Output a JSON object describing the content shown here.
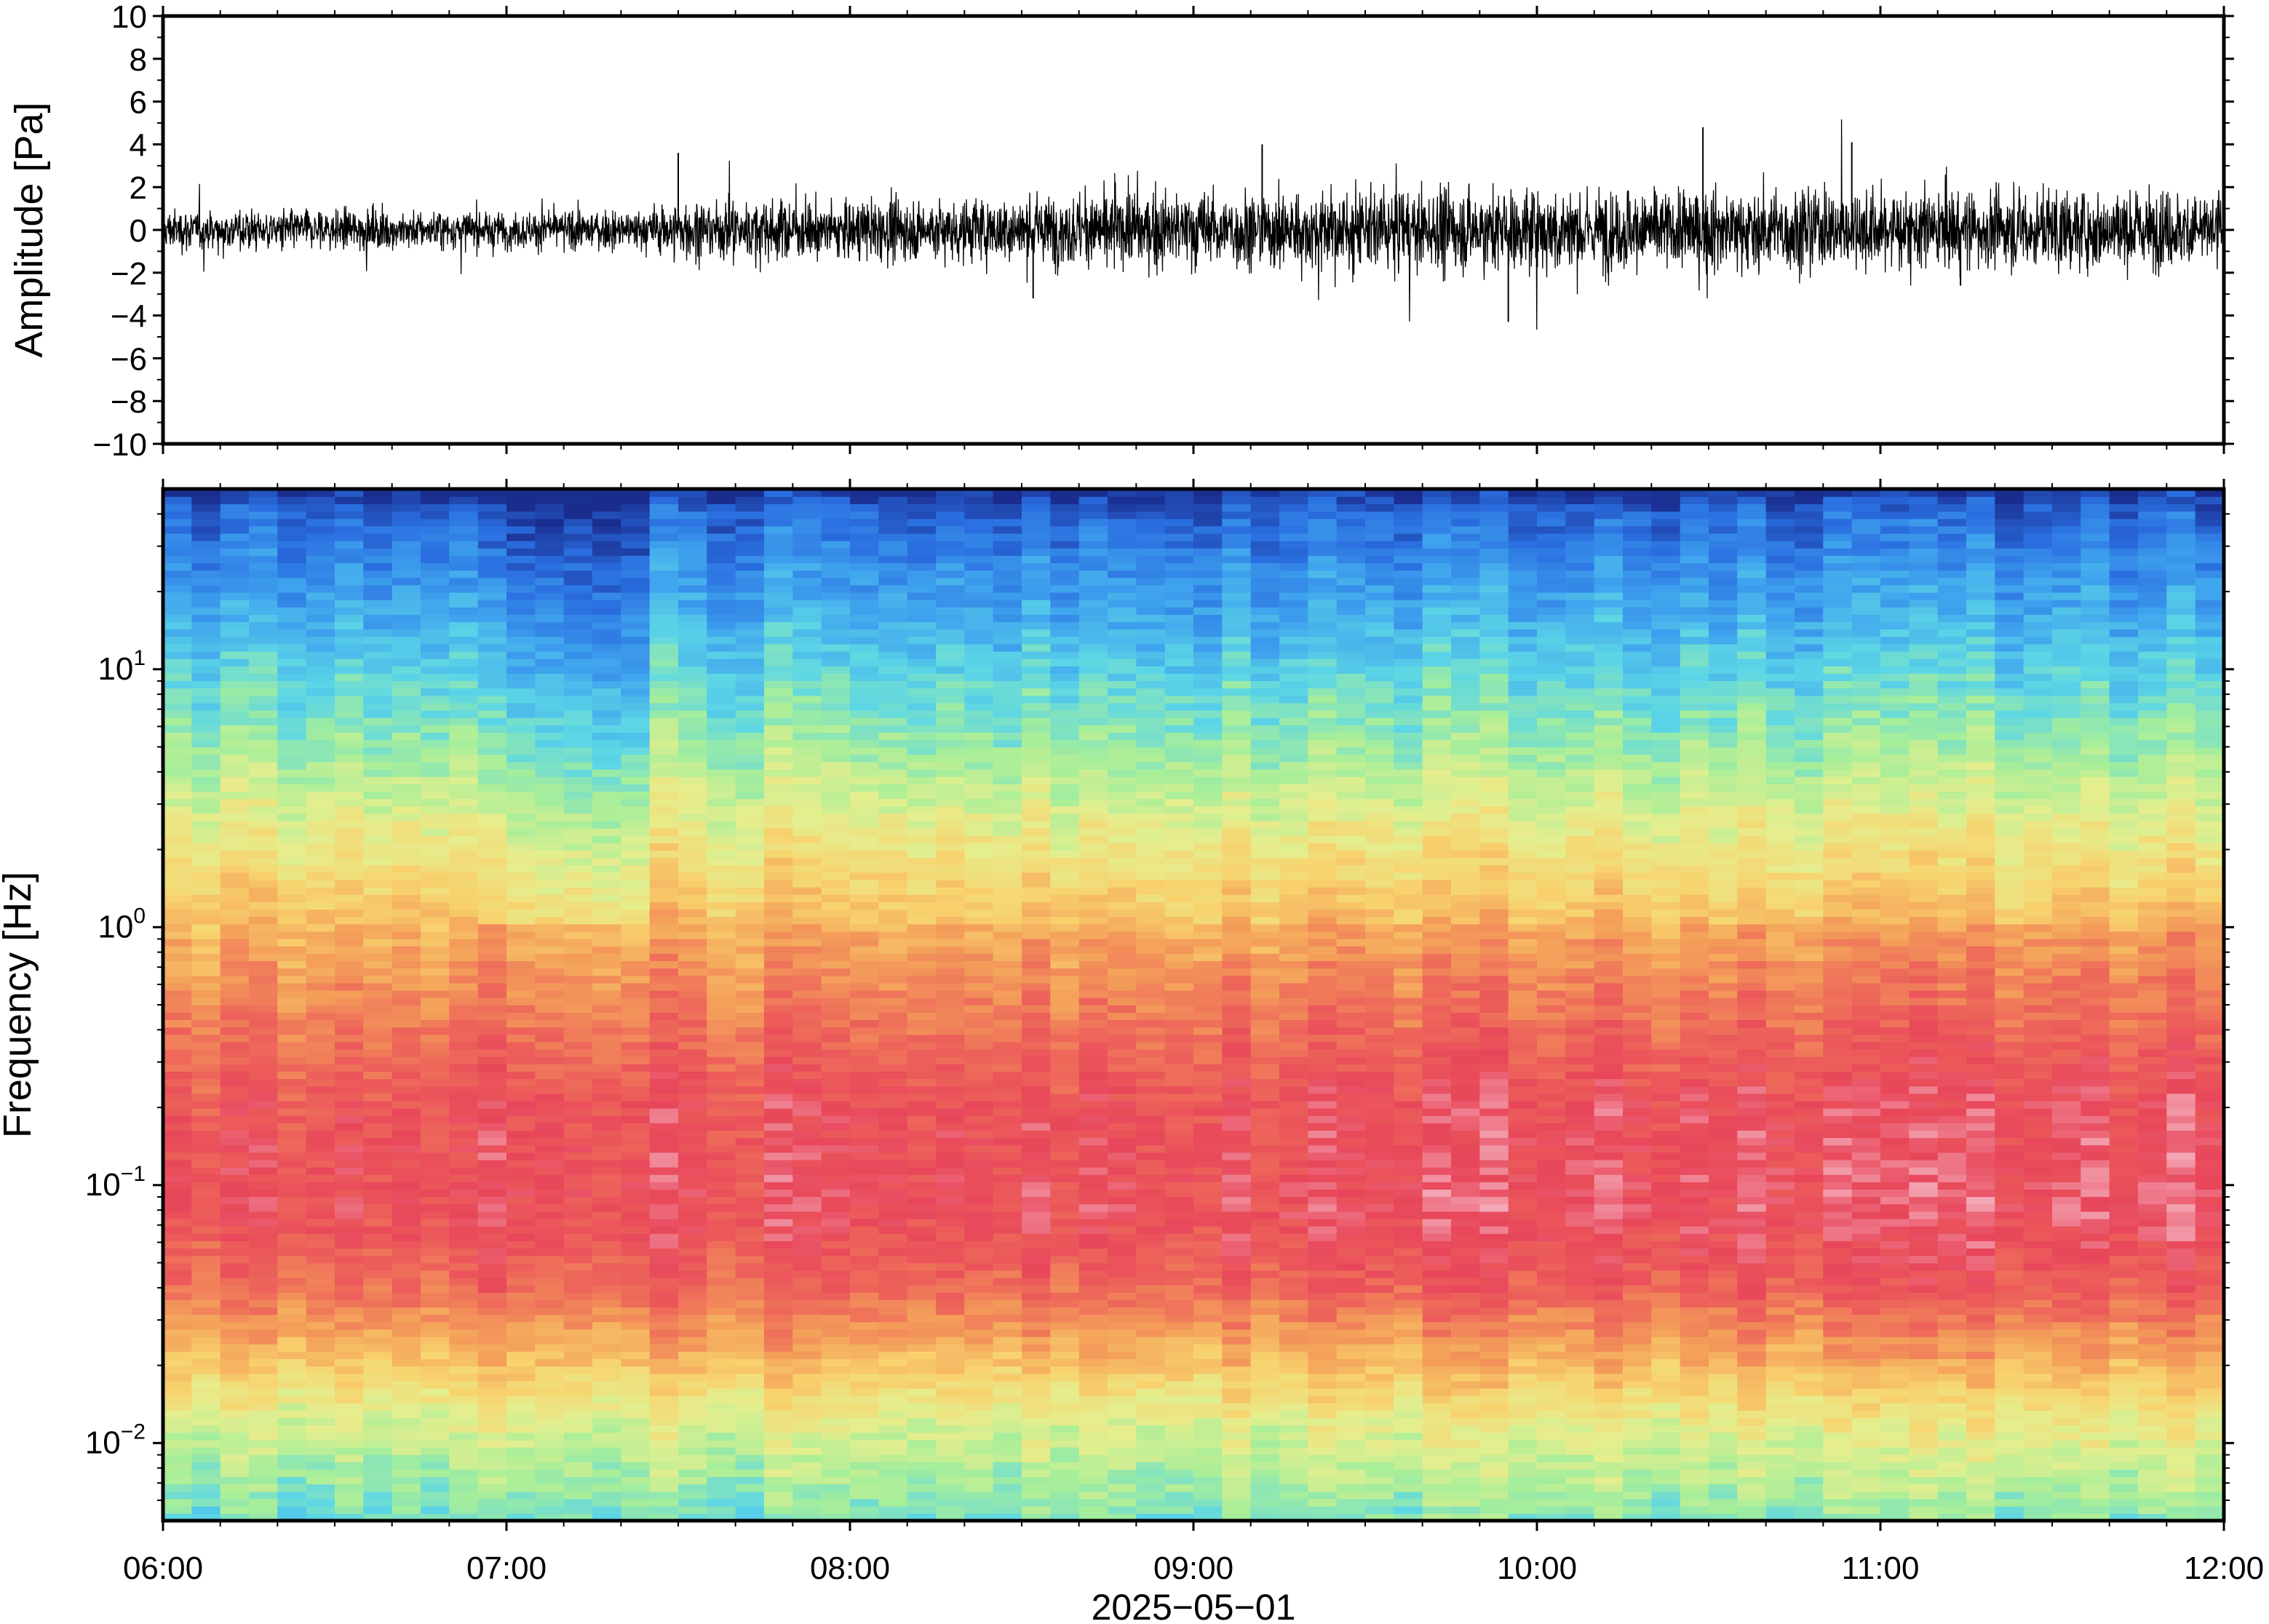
{
  "chart_data": [
    {
      "type": "line",
      "ylabel": "Amplitude [Pa]",
      "ylim": [
        -10,
        10
      ],
      "y_ticks": [
        {
          "value": 10,
          "label": "10"
        },
        {
          "value": 8,
          "label": "8"
        },
        {
          "value": 6,
          "label": "6"
        },
        {
          "value": 4,
          "label": "4"
        },
        {
          "value": 2,
          "label": "2"
        },
        {
          "value": 0,
          "label": "0"
        },
        {
          "value": -2,
          "label": "−2"
        },
        {
          "value": -4,
          "label": "−4"
        },
        {
          "value": -6,
          "label": "−6"
        },
        {
          "value": -8,
          "label": "−8"
        },
        {
          "value": -10,
          "label": "−10"
        }
      ],
      "x_range": [
        "06:00",
        "12:00"
      ],
      "grid": false,
      "series": [
        {
          "color": "#000000",
          "envelope_x_hours": [
            6.0,
            6.5,
            7.0,
            7.4,
            7.5,
            8.0,
            8.5,
            9.0,
            9.5,
            10.0,
            10.5,
            11.0,
            11.5,
            12.0
          ],
          "envelope_amplitude_pa": [
            1.2,
            1.2,
            1.1,
            1.2,
            1.8,
            1.7,
            2.0,
            2.3,
            2.3,
            2.5,
            2.4,
            2.4,
            2.3,
            2.3
          ],
          "peaks": [
            {
              "x": "07:30",
              "y": 3.6
            },
            {
              "x": "08:32",
              "y": -3.2
            },
            {
              "x": "09:12",
              "y": 4.0
            },
            {
              "x": "09:55",
              "y": -4.3
            },
            {
              "x": "10:29",
              "y": 4.8
            },
            {
              "x": "10:55",
              "y": 4.1
            },
            {
              "x": "11:14",
              "y": -2.6
            }
          ]
        }
      ]
    },
    {
      "type": "heatmap",
      "ylabel": "Frequency [Hz]",
      "xlabel": "2025−05−01",
      "y_scale": "log",
      "ylim": [
        0.005,
        50
      ],
      "y_ticks": [
        {
          "value": 10,
          "base": "10",
          "exp": "1"
        },
        {
          "value": 1,
          "base": "10",
          "exp": "0"
        },
        {
          "value": 0.1,
          "base": "10",
          "exp": "−1"
        },
        {
          "value": 0.01,
          "base": "10",
          "exp": "−2"
        }
      ],
      "x_ticks": [
        "06:00",
        "07:00",
        "08:00",
        "09:00",
        "10:00",
        "11:00",
        "12:00"
      ],
      "colormap": [
        "#1a2d8f",
        "#2a6ee0",
        "#3fa3ee",
        "#5cd6e6",
        "#a6ee9a",
        "#e5ee8e",
        "#f8d26e",
        "#f4a15a",
        "#ee6a5a",
        "#e8465a",
        "#f5b3c0"
      ],
      "level_profile_by_frequency": [
        {
          "hz": 50,
          "level": 0.02
        },
        {
          "hz": 40,
          "level": 0.1
        },
        {
          "hz": 20,
          "level": 0.2
        },
        {
          "hz": 10,
          "level": 0.3
        },
        {
          "hz": 5,
          "level": 0.4
        },
        {
          "hz": 2,
          "level": 0.55
        },
        {
          "hz": 1,
          "level": 0.66
        },
        {
          "hz": 0.4,
          "level": 0.78
        },
        {
          "hz": 0.2,
          "level": 0.86
        },
        {
          "hz": 0.08,
          "level": 0.88
        },
        {
          "hz": 0.04,
          "level": 0.8
        },
        {
          "hz": 0.02,
          "level": 0.62
        },
        {
          "hz": 0.012,
          "level": 0.48
        },
        {
          "hz": 0.005,
          "level": 0.33
        }
      ]
    }
  ]
}
